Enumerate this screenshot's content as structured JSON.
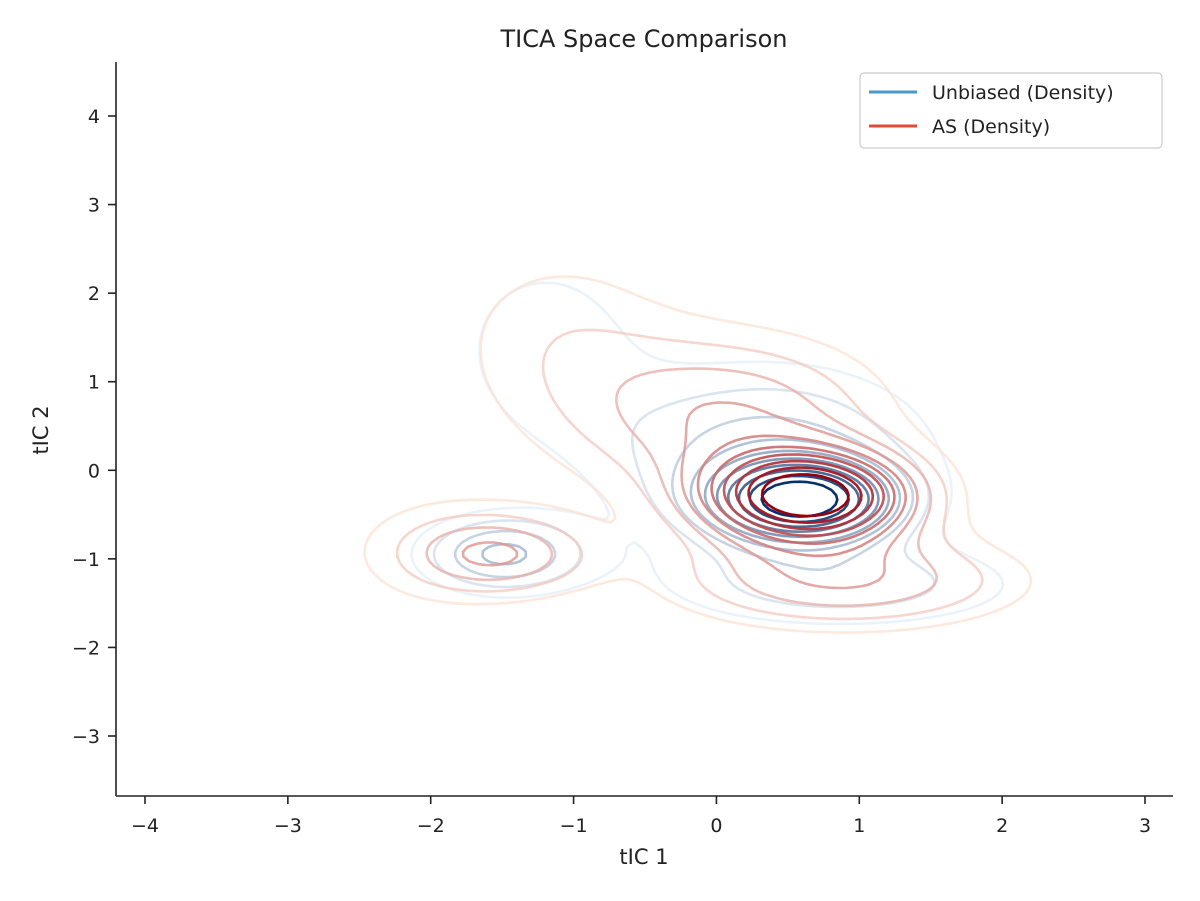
{
  "chart_data": {
    "type": "contour",
    "title": "TICA Space Comparison",
    "xlabel": "tIC 1",
    "ylabel": "tIC 2",
    "xlim": [
      -4.2,
      3.2
    ],
    "ylim": [
      -3.7,
      4.6
    ],
    "x_ticks": [
      -4,
      -3,
      -2,
      -1,
      0,
      1,
      2,
      3
    ],
    "y_ticks": [
      -3,
      -2,
      -1,
      0,
      1,
      2,
      3,
      4
    ],
    "x_tick_labels": [
      "−4",
      "−3",
      "−2",
      "−1",
      "0",
      "1",
      "2",
      "3"
    ],
    "y_tick_labels": [
      "−3",
      "−2",
      "−1",
      "0",
      "1",
      "2",
      "3",
      "4"
    ],
    "grid": false,
    "legend_position": "top-right",
    "series": [
      {
        "name": "Unbiased (Density)",
        "kind": "kde",
        "legend_color": "#4a98c9",
        "color_light": "#deebf7",
        "color_dark": "#08306b",
        "levels": 10,
        "modes": [
          {
            "x": 0.6,
            "y": -0.35,
            "sx": 0.42,
            "sy": 0.3,
            "w": 1.0
          },
          {
            "x": 0.35,
            "y": 0.2,
            "sx": 0.8,
            "sy": 0.7,
            "w": 0.35
          },
          {
            "x": -1.5,
            "y": -0.95,
            "sx": 0.4,
            "sy": 0.3,
            "w": 0.42
          },
          {
            "x": -1.2,
            "y": 1.4,
            "sx": 0.5,
            "sy": 0.8,
            "w": 0.18
          },
          {
            "x": 0.9,
            "y": -1.3,
            "sx": 0.9,
            "sy": 0.35,
            "w": 0.25
          }
        ]
      },
      {
        "name": "AS (Density)",
        "kind": "kde",
        "legend_color": "#e34a33",
        "color_light": "#fee0d2",
        "color_dark": "#99000d",
        "levels": 10,
        "modes": [
          {
            "x": 0.65,
            "y": -0.3,
            "sx": 0.5,
            "sy": 0.36,
            "w": 1.0
          },
          {
            "x": 0.9,
            "y": -1.25,
            "sx": 0.85,
            "sy": 0.38,
            "w": 0.35
          },
          {
            "x": 0.1,
            "y": 0.6,
            "sx": 0.75,
            "sy": 0.65,
            "w": 0.35
          },
          {
            "x": -1.5,
            "y": -0.95,
            "sx": 0.45,
            "sy": 0.32,
            "w": 0.3
          },
          {
            "x": -1.1,
            "y": 1.5,
            "sx": 0.6,
            "sy": 0.8,
            "w": 0.15
          },
          {
            "x": -2.0,
            "y": -0.9,
            "sx": 0.5,
            "sy": 0.5,
            "w": 0.12
          }
        ]
      }
    ]
  }
}
